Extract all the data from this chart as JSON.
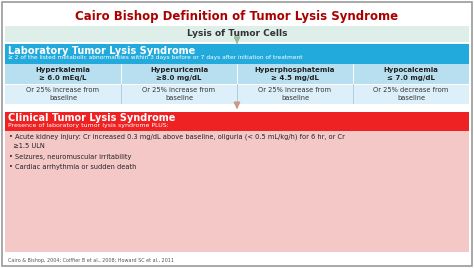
{
  "title": "Cairo Bishop Definition of Tumor Lysis Syndrome",
  "title_color": "#aa0000",
  "bg_color": "#ffffff",
  "lysis_label": "Lysis of Tumor Cells",
  "lysis_bg": "#deeee8",
  "lab_header": "Laboratory Tumor Lysis Syndrome",
  "lab_subheader": "≥ 2 of the listed metabolic abnormalities within 3 days before or 7 days after initiation of treatment",
  "lab_header_bg": "#22aadd",
  "lab_criteria_bg": "#b8dff0",
  "lab_row2_bg": "#ddf0fa",
  "criteria_headers": [
    "Hyperkalemia\n≥ 6.0 mEq/L",
    "Hyperuricemia\n≥8.0 mg/dL",
    "Hyperphosphatemia\n≥ 4.5 mg/dL",
    "Hypocalcemia\n≤ 7.0 mg/dL"
  ],
  "criteria_details": [
    "Or 25% increase from\nbaseline",
    "Or 25% increase from\nbaseline",
    "Or 25% increase from\nbaseline",
    "Or 25% decrease from\nbaseline"
  ],
  "clinical_header": "Clinical Tumor Lysis Syndrome",
  "clinical_subheader": "Presence of laboratory tumor lysis syndrome PLUS:",
  "clinical_header_bg": "#ee2222",
  "clinical_body_bg": "#f5c8c8",
  "clinical_bullets": [
    "• Acute kidney injury: Cr increased 0.3 mg/dL above baseline, oliguria (< 0.5 mL/kg/h) for 6 hr, or Cr\n  ≥1.5 ULN",
    "• Seizures, neuromuscular irritability",
    "• Cardiac arrhythmia or sudden death"
  ],
  "citation": "Cairo & Bishop, 2004; Coiffier B et al., 2008; Howard SC et al., 2011",
  "arrow_color_top": "#99bb99",
  "arrow_color_bot": "#cc9988"
}
